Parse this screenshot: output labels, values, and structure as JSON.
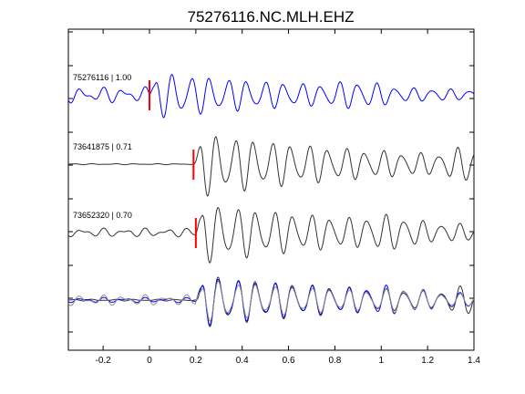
{
  "chart_data": {
    "type": "line",
    "title": "75276116.NC.MLH.EHZ",
    "xlabel": "",
    "ylabel": "",
    "xlim": [
      -0.35,
      1.4
    ],
    "x_ticks": [
      -0.2,
      0,
      0.2,
      0.4,
      0.6,
      0.8,
      1,
      1.2,
      1.4
    ],
    "x_tick_labels": [
      "-0.2",
      "0",
      "0.2",
      "0.4",
      "0.6",
      "0.8",
      "1",
      "1.2",
      "1.4"
    ],
    "grid": false,
    "colors": {
      "master": "#0000ff",
      "correlated": "#333333",
      "overlay": "#8c8c8c",
      "pick": "#ff0000"
    },
    "traces": [
      {
        "label": "75276116 | 1.00",
        "event_id": "75276116",
        "correlation": 1.0,
        "pick_time": 0.0,
        "color": "#0000ff"
      },
      {
        "label": "73641875 | 0.71",
        "event_id": "73641875",
        "correlation": 0.71,
        "pick_time": 0.19,
        "color": "#333333"
      },
      {
        "label": "73652320 | 0.70",
        "event_id": "73652320",
        "correlation": 0.7,
        "pick_time": 0.2,
        "color": "#333333"
      }
    ],
    "overlay_panel": {
      "series": [
        "75276116",
        "73641875",
        "73652320"
      ]
    }
  }
}
